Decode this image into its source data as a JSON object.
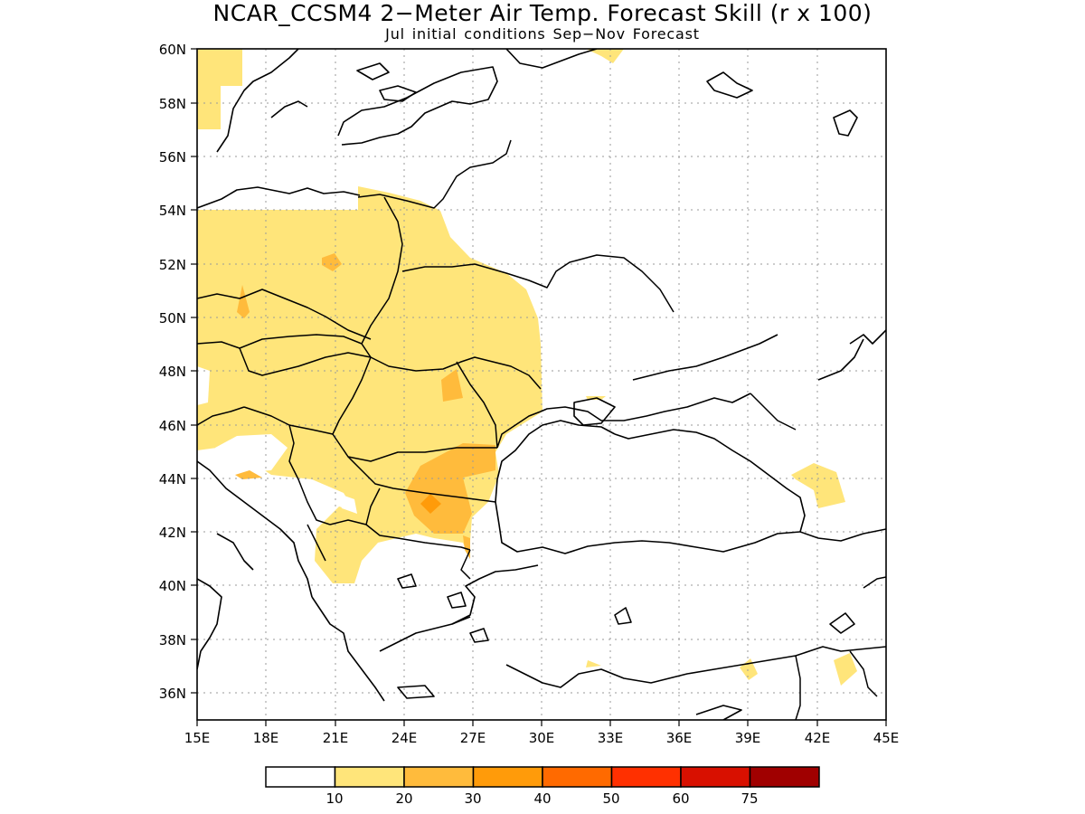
{
  "title": "NCAR_CCSM4 2−Meter Air Temp. Forecast Skill (r x 100)",
  "subtitle": "Jul initial conditions   Sep−Nov Forecast",
  "axes": {
    "x_ticks": [
      "15E",
      "18E",
      "21E",
      "24E",
      "27E",
      "30E",
      "33E",
      "36E",
      "39E",
      "42E",
      "45E"
    ],
    "y_ticks": [
      "60N",
      "58N",
      "56N",
      "54N",
      "52N",
      "50N",
      "48N",
      "46N",
      "44N",
      "42N",
      "40N",
      "38N",
      "36N"
    ]
  },
  "colorbar": {
    "labels": [
      "10",
      "20",
      "30",
      "40",
      "50",
      "60",
      "75"
    ],
    "colors": [
      "#ffffff",
      "#ffe57a",
      "#ffbb3c",
      "#ff9b0a",
      "#ff6a00",
      "#ff3000",
      "#d81000",
      "#a00000"
    ]
  }
}
